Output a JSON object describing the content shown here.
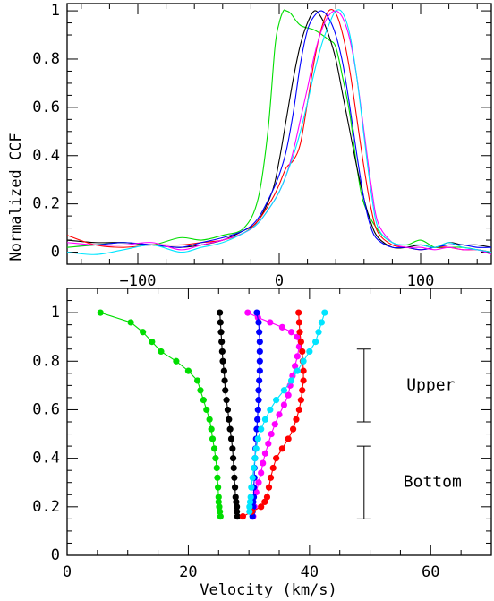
{
  "chart_data": [
    {
      "type": "line",
      "ylabel": "Normalized CCF",
      "xlim": [
        -150,
        150
      ],
      "ylim": [
        -0.05,
        1.03
      ],
      "x_ticks": [
        -100,
        0,
        100
      ],
      "y_ticks": [
        0,
        0.2,
        0.4,
        0.6,
        0.8,
        1
      ],
      "y_tick_labels": [
        "0",
        "0.2",
        "0.4",
        "0.6",
        "0.8",
        "1"
      ],
      "grid": false,
      "series": [
        {
          "color": "#00dd00",
          "x": [
            -150,
            -130,
            -110,
            -90,
            -70,
            -55,
            -40,
            -25,
            -15,
            -8,
            -3,
            0,
            3,
            5,
            8,
            15,
            25,
            35,
            40,
            45,
            50,
            55,
            60,
            70,
            80,
            90,
            100,
            110,
            120,
            130,
            140,
            150
          ],
          "y": [
            0.02,
            0.03,
            0.04,
            0.03,
            0.06,
            0.05,
            0.07,
            0.1,
            0.22,
            0.5,
            0.85,
            0.95,
            1.0,
            1.0,
            0.99,
            0.94,
            0.92,
            0.88,
            0.85,
            0.72,
            0.57,
            0.35,
            0.2,
            0.09,
            0.04,
            0.03,
            0.05,
            0.02,
            0.02,
            0.02,
            0.01,
            0.0
          ]
        },
        {
          "color": "#000000",
          "x": [
            -150,
            -130,
            -110,
            -90,
            -70,
            -55,
            -40,
            -25,
            -15,
            -5,
            0,
            5,
            10,
            15,
            20,
            25,
            30,
            35,
            40,
            45,
            50,
            55,
            60,
            65,
            70,
            80,
            90,
            100,
            110,
            120,
            130,
            140,
            150
          ],
          "y": [
            0.05,
            0.04,
            0.04,
            0.03,
            0.02,
            0.03,
            0.05,
            0.09,
            0.13,
            0.25,
            0.38,
            0.55,
            0.72,
            0.86,
            0.95,
            1.0,
            0.97,
            0.9,
            0.8,
            0.65,
            0.5,
            0.35,
            0.22,
            0.12,
            0.06,
            0.02,
            0.02,
            0.03,
            0.02,
            0.04,
            0.03,
            0.03,
            0.02
          ]
        },
        {
          "color": "#ff0000",
          "x": [
            -150,
            -130,
            -110,
            -90,
            -70,
            -55,
            -40,
            -25,
            -15,
            -5,
            0,
            5,
            10,
            15,
            20,
            25,
            30,
            35,
            40,
            45,
            50,
            55,
            60,
            65,
            70,
            80,
            90,
            100,
            110,
            120,
            130,
            140,
            150
          ],
          "y": [
            0.07,
            0.03,
            0.02,
            0.03,
            0.03,
            0.04,
            0.05,
            0.08,
            0.13,
            0.22,
            0.28,
            0.35,
            0.38,
            0.45,
            0.62,
            0.8,
            0.93,
            1.0,
            0.99,
            0.9,
            0.75,
            0.55,
            0.35,
            0.18,
            0.08,
            0.03,
            0.02,
            0.01,
            0.02,
            0.02,
            0.01,
            0.01,
            0.0
          ]
        },
        {
          "color": "#0000ff",
          "x": [
            -150,
            -130,
            -110,
            -90,
            -70,
            -55,
            -40,
            -25,
            -15,
            -5,
            0,
            5,
            10,
            15,
            20,
            25,
            30,
            35,
            40,
            45,
            50,
            55,
            60,
            65,
            70,
            80,
            90,
            100,
            110,
            120,
            130,
            140,
            150
          ],
          "y": [
            0.03,
            0.03,
            0.04,
            0.03,
            0.02,
            0.04,
            0.06,
            0.09,
            0.14,
            0.25,
            0.32,
            0.42,
            0.58,
            0.78,
            0.92,
            0.98,
            1.0,
            0.97,
            0.9,
            0.78,
            0.6,
            0.4,
            0.22,
            0.1,
            0.05,
            0.02,
            0.02,
            0.01,
            0.02,
            0.03,
            0.03,
            0.02,
            0.02
          ]
        },
        {
          "color": "#ff00ff",
          "x": [
            -150,
            -130,
            -110,
            -90,
            -70,
            -55,
            -40,
            -25,
            -15,
            -5,
            0,
            5,
            10,
            15,
            20,
            25,
            30,
            35,
            40,
            45,
            50,
            55,
            60,
            65,
            70,
            80,
            90,
            100,
            110,
            120,
            130,
            140,
            150
          ],
          "y": [
            0.04,
            0.03,
            0.03,
            0.04,
            0.01,
            0.03,
            0.05,
            0.08,
            0.12,
            0.2,
            0.25,
            0.32,
            0.42,
            0.55,
            0.68,
            0.82,
            0.92,
            0.98,
            1.0,
            0.97,
            0.88,
            0.72,
            0.5,
            0.28,
            0.12,
            0.04,
            0.02,
            0.02,
            0.01,
            0.02,
            0.01,
            0.01,
            -0.01
          ]
        },
        {
          "color": "#00e5ff",
          "x": [
            -150,
            -130,
            -110,
            -90,
            -70,
            -55,
            -40,
            -25,
            -15,
            -5,
            0,
            5,
            10,
            15,
            20,
            25,
            30,
            35,
            40,
            45,
            50,
            55,
            60,
            65,
            70,
            80,
            90,
            100,
            110,
            120,
            130,
            140,
            150
          ],
          "y": [
            0.0,
            -0.01,
            0.01,
            0.03,
            0.0,
            0.02,
            0.04,
            0.08,
            0.12,
            0.2,
            0.25,
            0.32,
            0.4,
            0.5,
            0.62,
            0.75,
            0.86,
            0.94,
            1.0,
            0.99,
            0.9,
            0.72,
            0.48,
            0.25,
            0.1,
            0.04,
            0.03,
            0.03,
            0.02,
            0.04,
            0.02,
            0.01,
            0.0
          ]
        }
      ]
    },
    {
      "type": "scatter",
      "xlabel": "Velocity  (km/s)",
      "xlim": [
        0,
        70
      ],
      "ylim": [
        0,
        1.1
      ],
      "x_ticks": [
        0,
        20,
        40,
        60
      ],
      "y_ticks": [
        0,
        0.2,
        0.4,
        0.6,
        0.8,
        1
      ],
      "y_tick_labels": [
        "0",
        "0.2",
        "0.4",
        "0.6",
        "0.8",
        "1"
      ],
      "grid": false,
      "annotations": [
        {
          "text": "Upper",
          "range": [
            0.55,
            0.85
          ]
        },
        {
          "text": "Bottom",
          "range": [
            0.15,
            0.45
          ]
        }
      ],
      "series": [
        {
          "color": "#00dd00",
          "x": [
            5.5,
            10.5,
            12.5,
            14,
            15.5,
            18,
            20,
            21.5,
            22,
            22.5,
            23,
            23.5,
            23.8,
            24,
            24.3,
            24.5,
            24.7,
            24.8,
            24.9,
            25,
            25,
            25.1,
            25.2,
            25.3
          ],
          "y": [
            1.0,
            0.96,
            0.92,
            0.88,
            0.84,
            0.8,
            0.76,
            0.72,
            0.68,
            0.64,
            0.6,
            0.56,
            0.52,
            0.48,
            0.44,
            0.4,
            0.36,
            0.32,
            0.28,
            0.24,
            0.22,
            0.2,
            0.18,
            0.16
          ]
        },
        {
          "color": "#000000",
          "x": [
            25.2,
            25.3,
            25.4,
            25.5,
            25.6,
            25.7,
            25.9,
            26.0,
            26.1,
            26.3,
            26.5,
            26.7,
            26.9,
            27.1,
            27.3,
            27.4,
            27.5,
            27.6,
            27.7,
            27.8,
            27.9,
            28.0,
            28.0,
            28.1
          ],
          "y": [
            1.0,
            0.96,
            0.92,
            0.88,
            0.84,
            0.8,
            0.76,
            0.72,
            0.68,
            0.64,
            0.6,
            0.56,
            0.52,
            0.48,
            0.44,
            0.4,
            0.36,
            0.32,
            0.28,
            0.24,
            0.22,
            0.2,
            0.18,
            0.16
          ]
        },
        {
          "color": "#ff00ff",
          "x": [
            29.8,
            31.5,
            33.5,
            35.5,
            37,
            38,
            38.3,
            38,
            37.6,
            37.2,
            36.8,
            36.5,
            35.8,
            35,
            34.3,
            33.7,
            33.2,
            32.7,
            32.3,
            32,
            31.6,
            31.2,
            30.9,
            30.7
          ],
          "y": [
            1.0,
            0.98,
            0.96,
            0.94,
            0.92,
            0.9,
            0.86,
            0.82,
            0.78,
            0.74,
            0.7,
            0.66,
            0.62,
            0.58,
            0.54,
            0.5,
            0.46,
            0.42,
            0.38,
            0.34,
            0.3,
            0.26,
            0.2,
            0.16
          ]
        },
        {
          "color": "#0000ff",
          "x": [
            31.3,
            31.6,
            31.7,
            31.8,
            31.8,
            31.8,
            31.8,
            31.7,
            31.6,
            31.6,
            31.5,
            31.4,
            31.3,
            31.2,
            31.1,
            31.0,
            30.9,
            30.9,
            30.8,
            30.8,
            30.7,
            30.7,
            30.6,
            30.6
          ],
          "y": [
            1.0,
            0.96,
            0.92,
            0.88,
            0.84,
            0.8,
            0.76,
            0.72,
            0.68,
            0.64,
            0.6,
            0.56,
            0.52,
            0.48,
            0.44,
            0.4,
            0.36,
            0.32,
            0.28,
            0.24,
            0.22,
            0.2,
            0.18,
            0.16
          ]
        },
        {
          "color": "#ff0000",
          "x": [
            38.2,
            38.3,
            38.4,
            38.6,
            38.8,
            38.9,
            39.0,
            39.0,
            38.8,
            38.6,
            38.3,
            37.8,
            37.3,
            36.5,
            35.5,
            34.5,
            34.0,
            33.6,
            33.3,
            33.0,
            32.6,
            32.0,
            30.5,
            29
          ],
          "y": [
            1.0,
            0.96,
            0.92,
            0.88,
            0.84,
            0.8,
            0.76,
            0.72,
            0.68,
            0.64,
            0.6,
            0.56,
            0.52,
            0.48,
            0.44,
            0.4,
            0.36,
            0.32,
            0.28,
            0.24,
            0.22,
            0.2,
            0.18,
            0.16
          ]
        },
        {
          "color": "#00e5ff",
          "x": [
            42.5,
            42,
            41.5,
            41,
            40,
            39,
            38,
            37,
            35.8,
            34.5,
            33.5,
            32.7,
            32,
            31.5,
            31.2,
            31,
            30.8,
            30.6,
            30.4,
            30.3,
            30.2,
            30.1,
            30.1
          ],
          "y": [
            1.0,
            0.96,
            0.92,
            0.88,
            0.84,
            0.8,
            0.76,
            0.72,
            0.68,
            0.64,
            0.6,
            0.56,
            0.52,
            0.48,
            0.44,
            0.4,
            0.36,
            0.32,
            0.28,
            0.24,
            0.22,
            0.2,
            0.18
          ]
        }
      ]
    }
  ]
}
